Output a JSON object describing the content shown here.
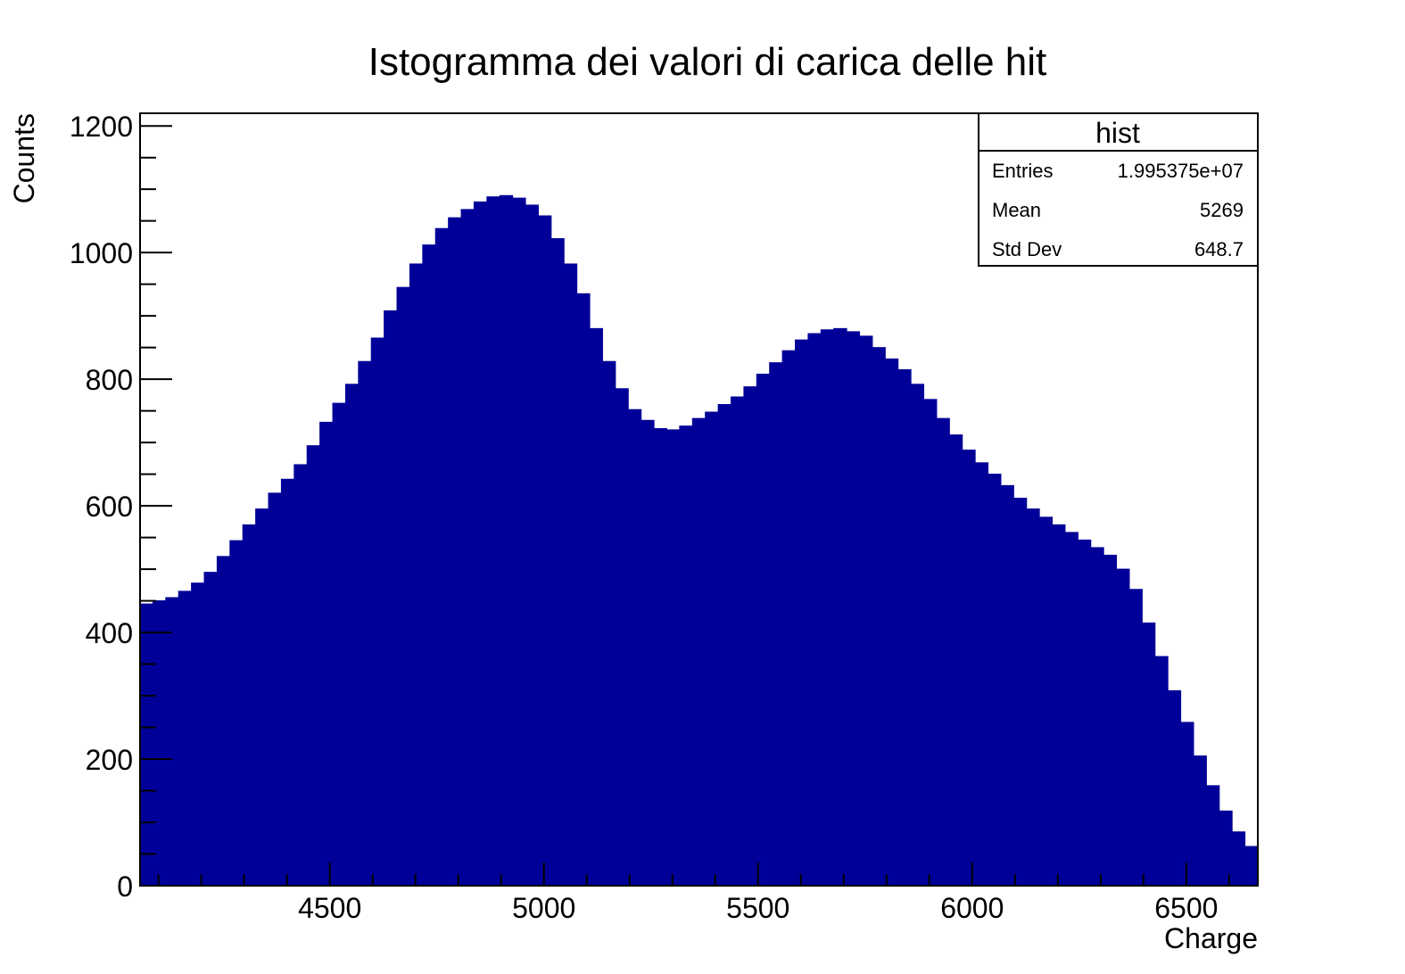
{
  "chart_data": {
    "type": "histogram",
    "title": "Istogramma dei valori di carica delle hit",
    "x_label": "Charge",
    "y_label": "Counts",
    "color": "#000099",
    "bins": [
      4057,
      4087,
      4117,
      4147,
      4177,
      4207,
      4237,
      4267,
      4297,
      4327,
      4357,
      4387,
      4417,
      4447,
      4477,
      4507,
      4537,
      4567,
      4597,
      4627,
      4657,
      4687,
      4717,
      4747,
      4777,
      4807,
      4837,
      4867,
      4897,
      4927,
      4957,
      4987,
      5017,
      5047,
      5077,
      5107,
      5137,
      5167,
      5197,
      5227,
      5257,
      5287,
      5317,
      5347,
      5377,
      5407,
      5437,
      5467,
      5497,
      5527,
      5557,
      5587,
      5617,
      5647,
      5677,
      5707,
      5737,
      5767,
      5797,
      5827,
      5857,
      5887,
      5917,
      5947,
      5977,
      6007,
      6037,
      6067,
      6097,
      6127,
      6157,
      6187,
      6217,
      6247,
      6277,
      6307,
      6337,
      6367,
      6397,
      6427,
      6457,
      6487,
      6517,
      6547,
      6577,
      6607,
      6637,
      6667
    ],
    "values": [
      445,
      450,
      455,
      465,
      478,
      495,
      520,
      545,
      570,
      595,
      620,
      642,
      665,
      695,
      732,
      762,
      792,
      828,
      865,
      908,
      945,
      982,
      1012,
      1038,
      1055,
      1068,
      1080,
      1088,
      1090,
      1086,
      1075,
      1058,
      1022,
      982,
      935,
      880,
      828,
      785,
      752,
      735,
      722,
      720,
      726,
      738,
      748,
      760,
      772,
      788,
      808,
      826,
      845,
      862,
      872,
      878,
      880,
      875,
      868,
      850,
      832,
      815,
      792,
      768,
      738,
      712,
      688,
      668,
      650,
      632,
      612,
      595,
      582,
      570,
      558,
      546,
      534,
      522,
      500,
      468,
      415,
      362,
      308,
      258,
      205,
      158,
      118,
      85,
      62
    ],
    "xlim": [
      4057,
      6667
    ],
    "ylim": [
      0,
      1220
    ],
    "xticks": [
      4500,
      5000,
      5500,
      6000,
      6500
    ],
    "xminorticks": [
      4100,
      4200,
      4300,
      4400,
      4600,
      4700,
      4800,
      4900,
      5100,
      5200,
      5300,
      5400,
      5600,
      5700,
      5800,
      5900,
      6100,
      6200,
      6300,
      6400,
      6600
    ],
    "yticks": [
      0,
      200,
      400,
      600,
      800,
      1000,
      1200
    ],
    "yminorticks": [
      50,
      100,
      150,
      250,
      300,
      350,
      450,
      500,
      550,
      650,
      700,
      750,
      850,
      900,
      950,
      1050,
      1100,
      1150
    ],
    "stats": {
      "title": "hist",
      "rows": [
        [
          "Entries",
          "1.995375e+07"
        ],
        [
          "Mean",
          "5269"
        ],
        [
          "Std Dev",
          "648.7"
        ]
      ]
    }
  }
}
